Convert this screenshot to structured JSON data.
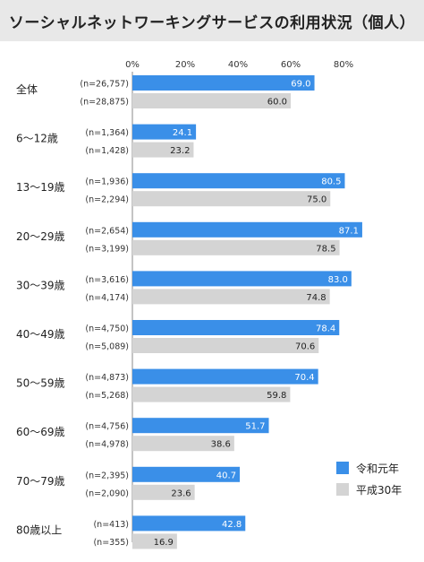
{
  "title": "ソーシャルネットワーキングサービスの利用状況（個人）",
  "chart_data": {
    "type": "bar",
    "orientation": "horizontal",
    "title": "ソーシャルネットワーキングサービスの利用状況（個人）",
    "xlim": [
      0,
      100
    ],
    "x_ticks": [
      "0%",
      "20%",
      "40%",
      "60%",
      "80%"
    ],
    "x_tick_values": [
      0,
      20,
      40,
      60,
      80
    ],
    "grid": false,
    "legend_position": "bottom-right",
    "categories": [
      "全体",
      "6〜12歳",
      "13〜19歳",
      "20〜29歳",
      "30〜39歳",
      "40〜49歳",
      "50〜59歳",
      "60〜69歳",
      "70〜79歳",
      "80歳以上"
    ],
    "series": [
      {
        "name": "令和元年",
        "color": "#3a8fe8",
        "values": [
          69.0,
          24.1,
          80.5,
          87.1,
          83.0,
          78.4,
          70.4,
          51.7,
          40.7,
          42.8
        ],
        "value_labels": [
          "69.0",
          "24.1",
          "80.5",
          "87.1",
          "83.0",
          "78.4",
          "70.4",
          "51.7",
          "40.7",
          "42.8"
        ],
        "n_labels": [
          "(n=26,757)",
          "(n=1,364)",
          "(n=1,936)",
          "(n=2,654)",
          "(n=3,616)",
          "(n=4,750)",
          "(n=4,873)",
          "(n=4,756)",
          "(n=2,395)",
          "(n=413)"
        ]
      },
      {
        "name": "平成30年",
        "color": "#d4d4d4",
        "values": [
          60.0,
          23.2,
          75.0,
          78.5,
          74.8,
          70.6,
          59.8,
          38.6,
          23.6,
          16.9
        ],
        "value_labels": [
          "60.0",
          "23.2",
          "75.0",
          "78.5",
          "74.8",
          "70.6",
          "59.8",
          "38.6",
          "23.6",
          "16.9"
        ],
        "n_labels": [
          "(n=28,875)",
          "(n=1,428)",
          "(n=2,294)",
          "(n=3,199)",
          "(n=4,174)",
          "(n=5,089)",
          "(n=5,268)",
          "(n=4,978)",
          "(n=2,090)",
          "(n=355)"
        ]
      }
    ]
  }
}
